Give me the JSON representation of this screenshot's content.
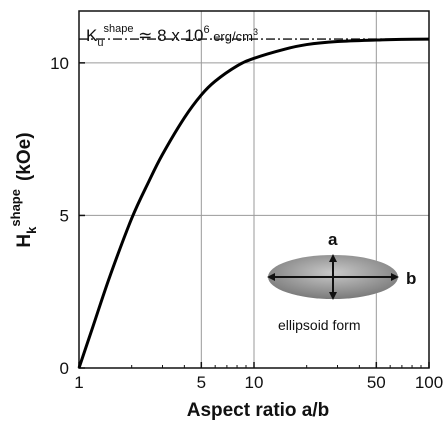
{
  "chart_data": {
    "type": "line",
    "xscale": "log",
    "xlim": [
      1,
      100
    ],
    "ylim": [
      0,
      11.7
    ],
    "grid": true,
    "xticks": [
      1,
      5,
      10,
      50,
      100
    ],
    "xtick_labels": [
      "1",
      "5",
      "10",
      "50",
      "100"
    ],
    "yticks": [
      0,
      5,
      10
    ],
    "ytick_labels": [
      "0",
      "5",
      "10"
    ],
    "xlabel": "Aspect ratio  a/b",
    "ylabel": {
      "main": "H",
      "sub": "k",
      "sup": "shape",
      "unit": "(kOe)"
    },
    "series": [
      {
        "x": [
          1,
          1.2,
          1.5,
          2,
          2.5,
          3,
          4,
          5,
          6,
          8,
          10,
          15,
          20,
          30,
          50,
          70,
          100
        ],
        "y": [
          0,
          1.35,
          3.0,
          4.9,
          6.1,
          7.0,
          8.2,
          8.95,
          9.4,
          9.9,
          10.15,
          10.45,
          10.6,
          10.7,
          10.75,
          10.77,
          10.78
        ]
      }
    ],
    "reference_line": {
      "y": 10.78,
      "style": "dash-dot"
    },
    "annotation": {
      "K": "K",
      "sub": "u",
      "sup": "shape",
      "approx": " ≃ 8 x 10",
      "exp": "6",
      "unit": " erg/cm",
      "unit_exp": "3"
    },
    "inset": {
      "label_a": "a",
      "label_b": "b",
      "caption": "ellipsoid form"
    }
  }
}
